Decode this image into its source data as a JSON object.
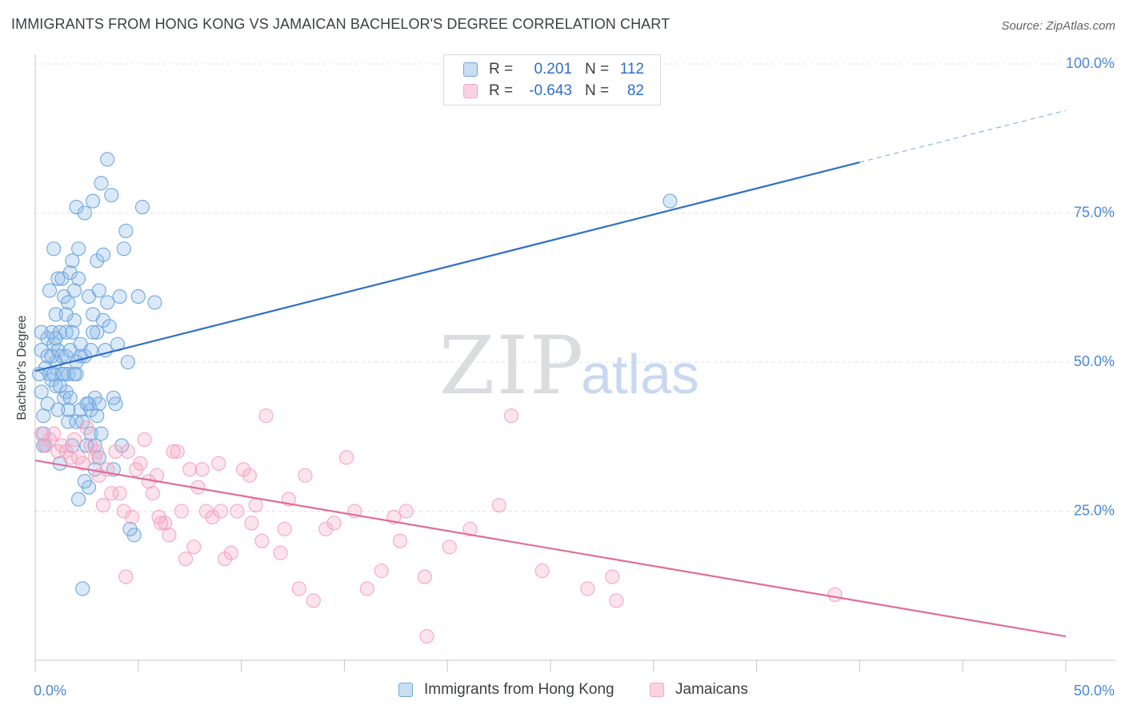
{
  "title": "IMMIGRANTS FROM HONG KONG VS JAMAICAN BACHELOR'S DEGREE CORRELATION CHART",
  "source": "Source: ZipAtlas.com",
  "watermark": {
    "zip": "ZIP",
    "atlas": "atlas"
  },
  "legend": {
    "r_label": "R =",
    "n_label": "N =",
    "rows": [
      {
        "r": "0.201",
        "n": "112",
        "color": "#6fa8dc"
      },
      {
        "r": "-0.643",
        "n": "82",
        "color": "#f4a6c0"
      }
    ]
  },
  "bottom_legend": [
    "Immigrants from Hong Kong",
    "Jamaicans"
  ],
  "chart_data": {
    "type": "scatter",
    "title": "IMMIGRANTS FROM HONG KONG VS JAMAICAN BACHELOR'S DEGREE CORRELATION CHART",
    "xlabel": "",
    "ylabel": "Bachelor's Degree",
    "xlim": [
      0,
      50
    ],
    "ylim": [
      0,
      100
    ],
    "x_tick_labels": [
      "0.0%",
      "50.0%"
    ],
    "y_tick_labels": [
      "25.0%",
      "50.0%",
      "75.0%",
      "100.0%"
    ],
    "y_ticks": [
      25,
      50,
      75,
      100
    ],
    "grid": true,
    "legend_position": "top-center",
    "series": [
      {
        "name": "Immigrants from Hong Kong",
        "color": "#6fa8dc",
        "line_color": "#2f6fc7",
        "trend": {
          "x0": 0,
          "y0": 48.5,
          "x1": 40,
          "y1": 83.5,
          "dash_to_x": 50,
          "dash_to_y": 92.2
        },
        "points": [
          [
            0.2,
            48
          ],
          [
            0.3,
            52
          ],
          [
            0.3,
            45
          ],
          [
            0.4,
            41
          ],
          [
            0.4,
            36
          ],
          [
            0.5,
            49
          ],
          [
            0.6,
            54
          ],
          [
            0.6,
            43
          ],
          [
            0.7,
            48
          ],
          [
            0.7,
            62
          ],
          [
            0.8,
            55
          ],
          [
            0.8,
            47
          ],
          [
            0.9,
            69
          ],
          [
            0.9,
            53
          ],
          [
            1.0,
            58
          ],
          [
            1.0,
            50
          ],
          [
            1.0,
            46
          ],
          [
            1.1,
            64
          ],
          [
            1.1,
            52
          ],
          [
            1.2,
            33
          ],
          [
            1.2,
            55
          ],
          [
            1.3,
            48
          ],
          [
            1.3,
            64
          ],
          [
            1.3,
            51
          ],
          [
            1.4,
            61
          ],
          [
            1.4,
            44
          ],
          [
            1.5,
            55
          ],
          [
            1.5,
            45
          ],
          [
            1.5,
            51
          ],
          [
            1.6,
            48
          ],
          [
            1.6,
            40
          ],
          [
            1.7,
            65
          ],
          [
            1.7,
            52
          ],
          [
            1.7,
            44
          ],
          [
            1.8,
            67
          ],
          [
            1.8,
            55
          ],
          [
            1.9,
            62
          ],
          [
            1.9,
            57
          ],
          [
            2.0,
            76
          ],
          [
            2.0,
            48
          ],
          [
            2.0,
            40
          ],
          [
            2.1,
            69
          ],
          [
            2.1,
            64
          ],
          [
            2.1,
            27
          ],
          [
            2.2,
            51
          ],
          [
            2.2,
            42
          ],
          [
            2.3,
            40
          ],
          [
            2.4,
            75
          ],
          [
            2.4,
            51
          ],
          [
            2.5,
            36
          ],
          [
            2.5,
            43
          ],
          [
            2.6,
            61
          ],
          [
            2.6,
            29
          ],
          [
            2.7,
            52
          ],
          [
            2.7,
            42
          ],
          [
            2.8,
            77
          ],
          [
            2.8,
            58
          ],
          [
            2.9,
            44
          ],
          [
            2.9,
            36
          ],
          [
            3.0,
            67
          ],
          [
            3.0,
            55
          ],
          [
            3.1,
            62
          ],
          [
            3.1,
            34
          ],
          [
            3.2,
            80
          ],
          [
            3.3,
            68
          ],
          [
            3.3,
            57
          ],
          [
            3.4,
            52
          ],
          [
            3.5,
            84
          ],
          [
            3.6,
            56
          ],
          [
            3.7,
            78
          ],
          [
            3.8,
            32
          ],
          [
            3.9,
            43
          ],
          [
            4.0,
            53
          ],
          [
            4.1,
            61
          ],
          [
            4.2,
            36
          ],
          [
            4.3,
            69
          ],
          [
            4.4,
            72
          ],
          [
            4.5,
            50
          ],
          [
            4.8,
            21
          ],
          [
            5.0,
            61
          ],
          [
            5.2,
            76
          ],
          [
            5.8,
            60
          ],
          [
            2.3,
            12
          ],
          [
            4.6,
            22
          ],
          [
            1.6,
            42
          ],
          [
            0.9,
            48
          ],
          [
            2.6,
            43
          ],
          [
            3.0,
            41
          ],
          [
            1.2,
            46
          ],
          [
            0.5,
            36
          ],
          [
            1.4,
            48
          ],
          [
            1.0,
            54
          ],
          [
            2.2,
            53
          ],
          [
            3.8,
            44
          ],
          [
            1.9,
            48
          ],
          [
            2.7,
            38
          ],
          [
            3.1,
            43
          ],
          [
            0.8,
            51
          ],
          [
            1.6,
            60
          ],
          [
            2.8,
            55
          ],
          [
            0.6,
            51
          ],
          [
            1.1,
            42
          ],
          [
            2.4,
            30
          ],
          [
            3.5,
            60
          ],
          [
            0.4,
            38
          ],
          [
            1.8,
            36
          ],
          [
            2.0,
            50
          ],
          [
            3.2,
            38
          ],
          [
            0.3,
            55
          ],
          [
            1.5,
            58
          ],
          [
            2.9,
            32
          ],
          [
            30.8,
            77
          ]
        ]
      },
      {
        "name": "Jamaicans",
        "color": "#f4a6c0",
        "line_color": "#e06c99",
        "trend": {
          "x0": 0,
          "y0": 33.5,
          "x1": 50,
          "y1": 4.0
        },
        "points": [
          [
            0.3,
            38
          ],
          [
            0.5,
            36
          ],
          [
            0.7,
            37
          ],
          [
            0.9,
            38
          ],
          [
            1.1,
            35
          ],
          [
            1.3,
            36
          ],
          [
            1.5,
            35
          ],
          [
            1.7,
            34
          ],
          [
            1.9,
            37
          ],
          [
            2.1,
            34
          ],
          [
            2.3,
            33
          ],
          [
            2.5,
            39
          ],
          [
            2.7,
            36
          ],
          [
            2.9,
            34
          ],
          [
            3.1,
            31
          ],
          [
            3.3,
            26
          ],
          [
            3.5,
            32
          ],
          [
            3.7,
            28
          ],
          [
            3.9,
            35
          ],
          [
            4.1,
            28
          ],
          [
            4.3,
            25
          ],
          [
            4.5,
            35
          ],
          [
            4.7,
            24
          ],
          [
            4.9,
            32
          ],
          [
            5.1,
            33
          ],
          [
            5.3,
            37
          ],
          [
            5.5,
            30
          ],
          [
            5.7,
            28
          ],
          [
            5.9,
            31
          ],
          [
            6.1,
            23
          ],
          [
            6.3,
            23
          ],
          [
            6.5,
            21
          ],
          [
            6.7,
            35
          ],
          [
            6.9,
            35
          ],
          [
            7.1,
            25
          ],
          [
            7.3,
            17
          ],
          [
            7.5,
            32
          ],
          [
            7.7,
            19
          ],
          [
            7.9,
            29
          ],
          [
            8.1,
            32
          ],
          [
            8.3,
            25
          ],
          [
            8.6,
            24
          ],
          [
            8.9,
            33
          ],
          [
            9.2,
            17
          ],
          [
            9.5,
            18
          ],
          [
            9.8,
            25
          ],
          [
            10.1,
            32
          ],
          [
            10.4,
            31
          ],
          [
            10.7,
            26
          ],
          [
            11.0,
            20
          ],
          [
            11.2,
            41
          ],
          [
            11.9,
            18
          ],
          [
            12.1,
            22
          ],
          [
            12.3,
            27
          ],
          [
            13.1,
            31
          ],
          [
            14.1,
            22
          ],
          [
            14.5,
            23
          ],
          [
            15.1,
            34
          ],
          [
            16.1,
            12
          ],
          [
            16.8,
            15
          ],
          [
            17.4,
            24
          ],
          [
            17.7,
            20
          ],
          [
            18.0,
            25
          ],
          [
            18.9,
            14
          ],
          [
            20.1,
            19
          ],
          [
            21.1,
            22
          ],
          [
            22.5,
            26
          ],
          [
            23.1,
            41
          ],
          [
            26.8,
            12
          ],
          [
            28.0,
            14
          ],
          [
            28.2,
            10
          ],
          [
            38.8,
            11
          ],
          [
            4.4,
            14
          ],
          [
            13.5,
            10
          ],
          [
            10.5,
            23
          ],
          [
            9.0,
            25
          ],
          [
            6.0,
            24
          ],
          [
            3.0,
            35
          ],
          [
            15.5,
            25
          ],
          [
            12.8,
            12
          ],
          [
            19.0,
            4
          ],
          [
            24.6,
            15
          ]
        ]
      }
    ]
  }
}
